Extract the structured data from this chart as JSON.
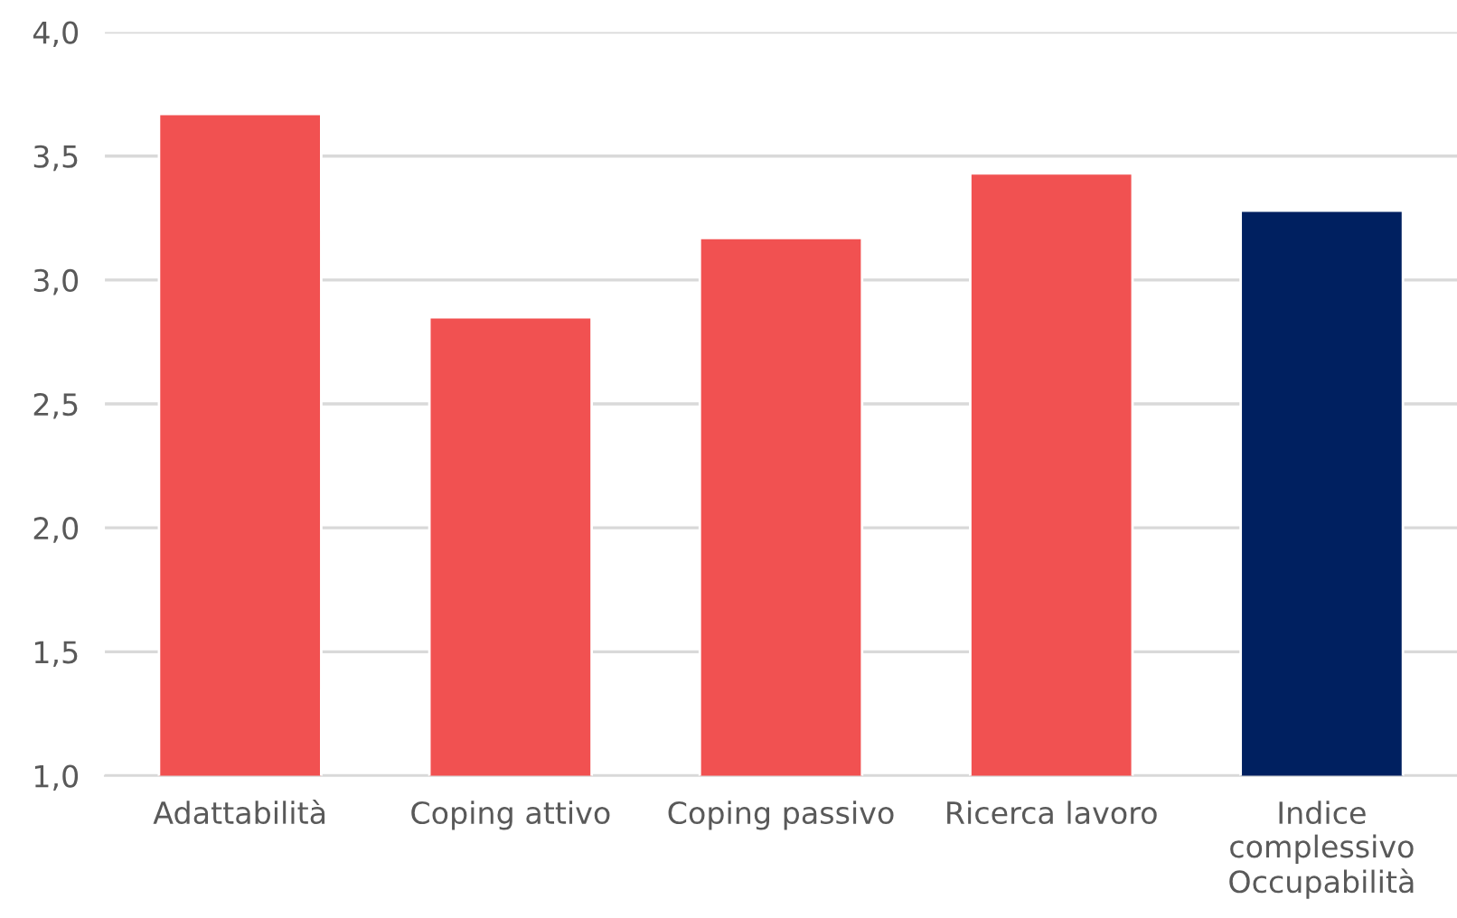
{
  "chart_data": {
    "type": "bar",
    "categories": [
      "Adattabilità",
      "Coping attivo",
      "Coping passivo",
      "Ricerca lavoro",
      "Indice\ncomplessivo\nOccupabilità"
    ],
    "values": [
      3.67,
      2.85,
      3.17,
      3.43,
      3.28
    ],
    "colors": [
      "#f15151",
      "#f15151",
      "#f15151",
      "#f15151",
      "#002060"
    ],
    "ylim": [
      1.0,
      4.0
    ],
    "yticks": [
      {
        "value": 1.0,
        "label": "1,0"
      },
      {
        "value": 1.5,
        "label": "1,5"
      },
      {
        "value": 2.0,
        "label": "2,0"
      },
      {
        "value": 2.5,
        "label": "2,5"
      },
      {
        "value": 3.0,
        "label": "3,0"
      },
      {
        "value": 3.5,
        "label": "3,5"
      },
      {
        "value": 4.0,
        "label": "4,0"
      }
    ],
    "grid": "y"
  }
}
